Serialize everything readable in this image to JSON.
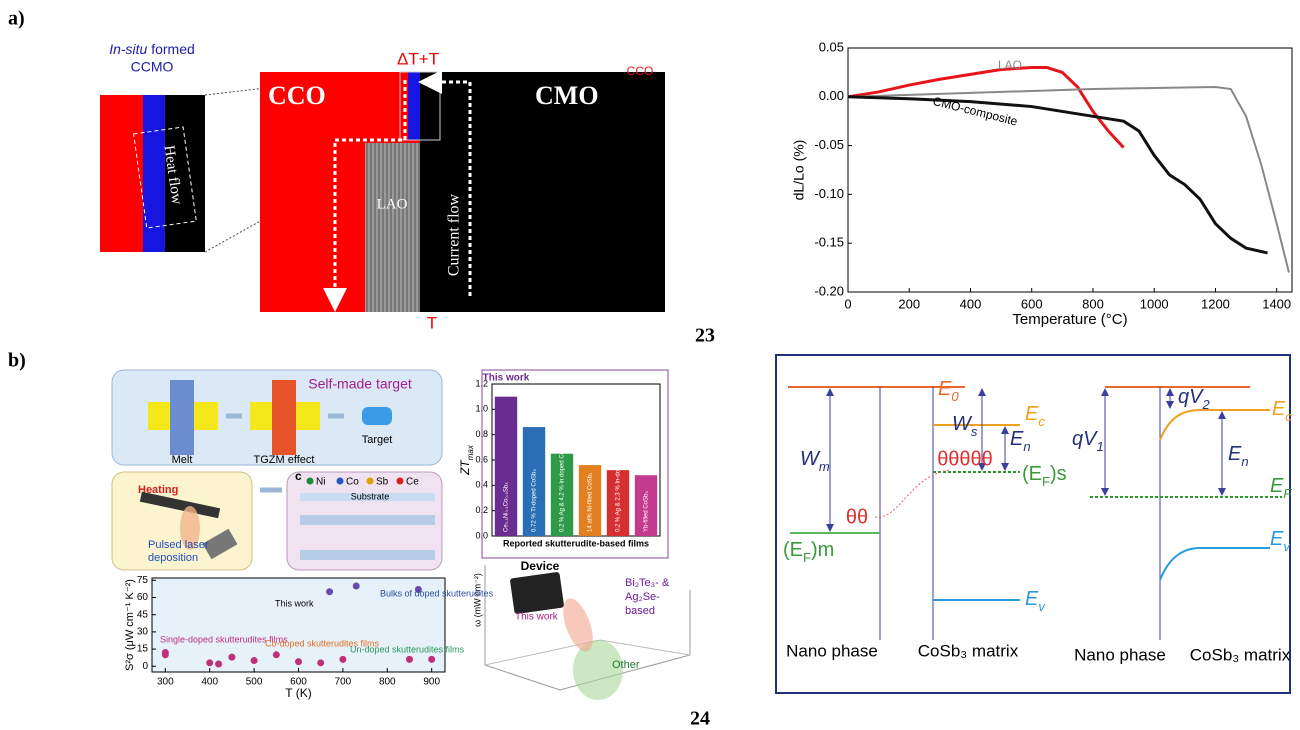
{
  "labels": {
    "a": "a)",
    "b": "b)",
    "ref_a": "23",
    "ref_b": "24"
  },
  "schematic": {
    "in_situ": "In-situ",
    "formed": " formed",
    "ccmo": "CCMO",
    "heat_flow": "Heat flow",
    "delta_t": "ΔT+T",
    "t": "T",
    "cco": "CCO",
    "cmo": "CMO",
    "lao": "LAO",
    "current_flow": "Current flow"
  },
  "chart_data": [
    {
      "type": "line",
      "xlabel": "Temperature (°C)",
      "ylabel": "dL/Lo (%)",
      "xlim": [
        0,
        1450
      ],
      "ylim": [
        -0.2,
        0.05
      ],
      "xticks": [
        0,
        200,
        400,
        600,
        800,
        1000,
        1200,
        1400
      ],
      "yticks": [
        {
          "value": -0.2,
          "label": "-0.20"
        },
        {
          "value": -0.15,
          "label": "-0.15"
        },
        {
          "value": -0.1,
          "label": "-0.10"
        },
        {
          "value": -0.05,
          "label": "-0.05"
        },
        {
          "value": 0,
          "label": "0.00"
        },
        {
          "value": 0.05,
          "label": "0.05"
        }
      ],
      "series": [
        {
          "name": "CCO",
          "color": "#e8141b",
          "x": [
            0,
            100,
            200,
            300,
            400,
            500,
            600,
            650,
            700,
            750,
            800,
            850,
            900
          ],
          "values": [
            0,
            0.005,
            0.012,
            0.018,
            0.023,
            0.028,
            0.03,
            0.03,
            0.025,
            0.01,
            -0.015,
            -0.035,
            -0.052
          ]
        },
        {
          "name": "LAO",
          "color": "#888888",
          "x": [
            0,
            200,
            400,
            600,
            800,
            1000,
            1200,
            1250,
            1300,
            1350,
            1400,
            1440
          ],
          "values": [
            0,
            0.002,
            0.004,
            0.006,
            0.008,
            0.009,
            0.01,
            0.008,
            -0.02,
            -0.07,
            -0.13,
            -0.18
          ]
        },
        {
          "name": "CMO-composite",
          "color": "#111111",
          "x": [
            0,
            200,
            400,
            600,
            700,
            800,
            900,
            950,
            1000,
            1050,
            1100,
            1150,
            1200,
            1250,
            1300,
            1370
          ],
          "values": [
            0,
            -0.002,
            -0.005,
            -0.01,
            -0.015,
            -0.02,
            -0.025,
            -0.035,
            -0.06,
            -0.08,
            -0.09,
            -0.105,
            -0.13,
            -0.145,
            -0.155,
            -0.16
          ]
        }
      ]
    },
    {
      "type": "bar",
      "title": "This work",
      "xlabel": "Reported skutterudite-based films",
      "ylabel_main": "ZT",
      "ylabel_sub": "max",
      "categories": [
        "Ce₀.₁Ni₀.₁Co₀.₉Sb₃",
        "0.72 % Ti-doped CoSb₃",
        "0.2 % Ag & 4.2 % In doped CoSb₃",
        "14 at% Ni-filled CoSb₃",
        "0.2 % Ag & 2.3 % In-doped CoSb₃",
        "Yb-filled CoSb₃"
      ],
      "values": [
        1.1,
        0.86,
        0.65,
        0.56,
        0.52,
        0.48
      ],
      "colors": [
        "#6b2c91",
        "#2a6fb5",
        "#2f9a48",
        "#e0801e",
        "#d62f2f",
        "#c43a8e"
      ],
      "ylim": [
        0,
        1.2
      ],
      "yticks": [
        {
          "value": 0,
          "label": "0.0"
        },
        {
          "value": 0.2,
          "label": "0.2"
        },
        {
          "value": 0.4,
          "label": "0.4"
        },
        {
          "value": 0.6,
          "label": "0.6"
        },
        {
          "value": 0.8,
          "label": "0.8"
        },
        {
          "value": 1,
          "label": "1.0"
        },
        {
          "value": 1.2,
          "label": "1.2"
        }
      ]
    },
    {
      "type": "scatter",
      "xlabel": "T (K)",
      "ylabel": "S²σ (μW cm⁻¹ K⁻²)",
      "xlim": [
        270,
        930
      ],
      "ylim": [
        -5,
        77
      ],
      "xticks": [
        300,
        400,
        500,
        600,
        700,
        800,
        900
      ],
      "yticks": [
        0,
        15,
        30,
        45,
        60,
        75
      ],
      "annotations": [
        "This work",
        "Bulks of doped skutterudites",
        "Single-doped skutterudites films",
        "Co-doped skutterudites films",
        "Un-doped skutterudites films"
      ],
      "series": [
        {
          "name": "Films",
          "color": "#c0307a",
          "x": [
            300,
            300,
            400,
            420,
            450,
            500,
            550,
            600,
            650,
            700,
            850,
            900
          ],
          "values": [
            12,
            10,
            3,
            2,
            8,
            5,
            10,
            4,
            3,
            6,
            6,
            6
          ]
        },
        {
          "name": "Bulks",
          "color": "#6a4bb0",
          "x": [
            670,
            730,
            870
          ],
          "values": [
            65,
            70,
            67
          ]
        }
      ]
    }
  ],
  "synthesis": {
    "self_made": "Self-made target",
    "melt": "Melt",
    "tgzm": "TGZM effect",
    "target": "Target",
    "panel_c": "c",
    "elements": [
      "Ni",
      "Co",
      "Sb",
      "Ce"
    ],
    "element_colors": [
      "#1f8a3a",
      "#2456c8",
      "#e0a000",
      "#d62020"
    ],
    "substrate": "Substrate",
    "heating": "Heating",
    "pld_1": "Pulsed laser",
    "pld_2": "deposition"
  },
  "device_plot": {
    "device": "Device",
    "this_work": "This work",
    "bi2te3": "Bi₂Te₃- &",
    "ag2se": "Ag₂Se-",
    "based": "based",
    "other": "Other",
    "ylabel": "ω (mW cm⁻²)"
  },
  "band": {
    "e0": {
      "main": "E",
      "sub": "0"
    },
    "wm": {
      "main": "W",
      "sub": "m"
    },
    "theta2": "θθ",
    "efm": {
      "main": "(E",
      "sub": "F",
      "tail": ")m"
    },
    "ws": {
      "main": "W",
      "sub": "s"
    },
    "en1": {
      "main": "E",
      "sub": "n"
    },
    "ec1": {
      "main": "E",
      "sub": "c"
    },
    "theta5": "θθθθθ",
    "efs": {
      "main": "(E",
      "sub": "F",
      "tail": ")s"
    },
    "ev1": {
      "main": "E",
      "sub": "v"
    },
    "qv1": {
      "main": "qV",
      "sub": "1"
    },
    "qv2": {
      "main": "qV",
      "sub": "2"
    },
    "ec2": {
      "main": "E",
      "sub": "c"
    },
    "en2": {
      "main": "E",
      "sub": "n"
    },
    "ef": {
      "main": "E",
      "sub": "F"
    },
    "ev2": {
      "main": "E",
      "sub": "v"
    },
    "nano_1": "Nano phase",
    "matrix_1": "CoSb₃ matrix",
    "nano_2": "Nano phase",
    "matrix_2": "CoSb₃ matrix"
  }
}
